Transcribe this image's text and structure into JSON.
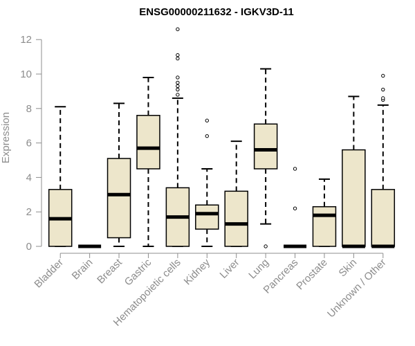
{
  "chart_data": {
    "type": "boxplot",
    "title": "ENSG00000211632 - IGKV3D-11",
    "xlabel": "",
    "ylabel": "Expression",
    "ylim": [
      0,
      12.8
    ],
    "yticks": [
      0,
      2,
      4,
      6,
      8,
      10,
      12
    ],
    "box_fill": "#ede6cb",
    "categories": [
      "Bladder",
      "Brain",
      "Breast",
      "Gastric",
      "Hematopoietic cells",
      "Kidney",
      "Liver",
      "Lung",
      "Pancreas",
      "Prostate",
      "Skin",
      "Unknown / Other"
    ],
    "series": [
      {
        "name": "Bladder",
        "whisker_low": 0,
        "q1": 0,
        "median": 1.6,
        "q3": 3.3,
        "whisker_high": 8.1,
        "outliers": []
      },
      {
        "name": "Brain",
        "whisker_low": 0,
        "q1": 0,
        "median": 0,
        "q3": 0,
        "whisker_high": 0,
        "outliers": []
      },
      {
        "name": "Breast",
        "whisker_low": 0,
        "q1": 0.5,
        "median": 3.0,
        "q3": 5.1,
        "whisker_high": 8.3,
        "outliers": []
      },
      {
        "name": "Gastric",
        "whisker_low": 0,
        "q1": 4.5,
        "median": 5.7,
        "q3": 7.6,
        "whisker_high": 9.8,
        "outliers": []
      },
      {
        "name": "Hematopoietic cells",
        "whisker_low": 0,
        "q1": 0,
        "median": 1.7,
        "q3": 3.4,
        "whisker_high": 8.6,
        "outliers": [
          8.8,
          9.1,
          9.3,
          9.5,
          9.8,
          10.9,
          11.1,
          12.6
        ]
      },
      {
        "name": "Kidney",
        "whisker_low": 0,
        "q1": 1.0,
        "median": 1.9,
        "q3": 2.4,
        "whisker_high": 4.5,
        "outliers": [
          6.4,
          7.3
        ]
      },
      {
        "name": "Liver",
        "whisker_low": 0,
        "q1": 0,
        "median": 1.3,
        "q3": 3.2,
        "whisker_high": 6.1,
        "outliers": []
      },
      {
        "name": "Lung",
        "whisker_low": 1.3,
        "q1": 4.5,
        "median": 5.6,
        "q3": 7.1,
        "whisker_high": 10.3,
        "outliers": [
          0
        ]
      },
      {
        "name": "Pancreas",
        "whisker_low": 0,
        "q1": 0,
        "median": 0,
        "q3": 0,
        "whisker_high": 0,
        "outliers": [
          2.2,
          4.5
        ]
      },
      {
        "name": "Prostate",
        "whisker_low": 0,
        "q1": 0,
        "median": 1.8,
        "q3": 2.3,
        "whisker_high": 3.9,
        "outliers": []
      },
      {
        "name": "Skin",
        "whisker_low": 0,
        "q1": 0,
        "median": 0,
        "q3": 5.6,
        "whisker_high": 8.7,
        "outliers": []
      },
      {
        "name": "Unknown / Other",
        "whisker_low": 0,
        "q1": 0,
        "median": 0,
        "q3": 3.3,
        "whisker_high": 8.2,
        "outliers": [
          8.5,
          8.6,
          9.1,
          9.9
        ]
      }
    ]
  }
}
